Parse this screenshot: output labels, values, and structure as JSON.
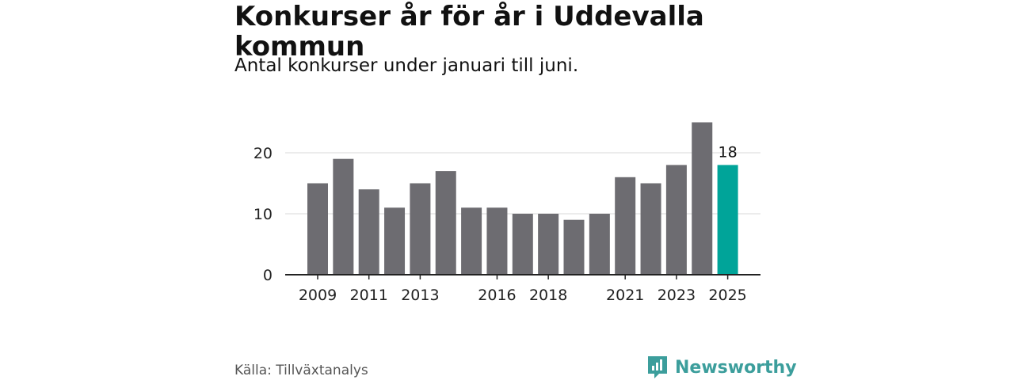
{
  "header": {
    "title": "Konkurser år för år i Uddevalla kommun",
    "subtitle": "Antal konkurser under januari till juni."
  },
  "footer": {
    "source": "Källa: Tillväxtanalys",
    "brand": "Newsworthy"
  },
  "colors": {
    "bar": "#6d6c71",
    "highlight": "#00a499",
    "grid": "#d9d9d9",
    "axis": "#222222",
    "brand": "#3c9e9c"
  },
  "chart_data": {
    "type": "bar",
    "categories": [
      "2009",
      "2010",
      "2011",
      "2012",
      "2013",
      "2014",
      "2015",
      "2016",
      "2017",
      "2018",
      "2019",
      "2020",
      "2021",
      "2022",
      "2023",
      "2024",
      "2025"
    ],
    "values": [
      15,
      19,
      14,
      11,
      15,
      17,
      11,
      11,
      10,
      10,
      9,
      10,
      16,
      15,
      18,
      25,
      18
    ],
    "x_tick_labels": [
      "2009",
      "2011",
      "2013",
      "2016",
      "2018",
      "2021",
      "2023",
      "2025"
    ],
    "y_ticks": [
      0,
      10,
      20
    ],
    "ylim": [
      0,
      25
    ],
    "highlight_index": 16,
    "highlight_label": "18",
    "grid": true,
    "title": "Konkurser år för år i Uddevalla kommun",
    "subtitle": "Antal konkurser under januari till juni.",
    "xlabel": "",
    "ylabel": ""
  }
}
